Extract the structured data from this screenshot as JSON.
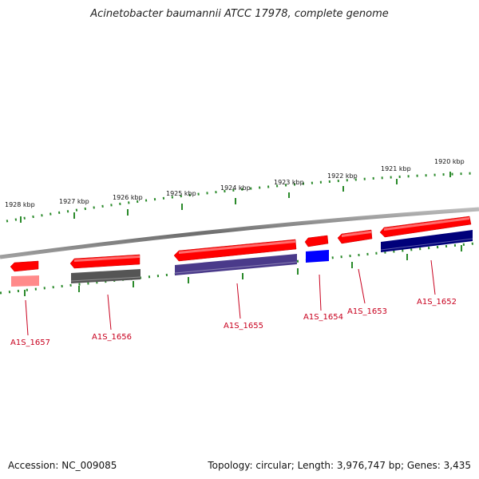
{
  "title": "Acinetobacter baumannii ATCC 17978, complete genome",
  "footer": {
    "accession": "Accession: NC_009085",
    "summary": "Topology: circular; Length: 3,976,747 bp; Genes: 3,435"
  },
  "scale": {
    "unit": "kbp",
    "ticks": [
      {
        "pos": 1920,
        "label": "1920 kbp"
      },
      {
        "pos": 1921,
        "label": "1921 kbp"
      },
      {
        "pos": 1922,
        "label": "1922 kbp"
      },
      {
        "pos": 1923,
        "label": "1923 kbp"
      },
      {
        "pos": 1924,
        "label": "1924 kbp"
      },
      {
        "pos": 1925,
        "label": "1925 kbp"
      },
      {
        "pos": 1926,
        "label": "1926 kbp"
      },
      {
        "pos": 1927,
        "label": "1927 kbp"
      },
      {
        "pos": 1928,
        "label": "1928 kbp"
      }
    ]
  },
  "genes": [
    {
      "id": "A1S_1652",
      "label": "A1S_1652"
    },
    {
      "id": "A1S_1653",
      "label": "A1S_1653"
    },
    {
      "id": "A1S_1654",
      "label": "A1S_1654"
    },
    {
      "id": "A1S_1655",
      "label": "A1S_1655"
    },
    {
      "id": "A1S_1656",
      "label": "A1S_1656"
    },
    {
      "id": "A1S_1657",
      "label": "A1S_1657"
    }
  ],
  "colors": {
    "gene_arrow": "#ff0000",
    "backbone": "#888888",
    "tick": "#2a8a2a",
    "label": "#c8001e",
    "cds_A1S_1652": "#00007a",
    "cds_A1S_1654": "#0000ff",
    "cds_A1S_1655": "#4a3a8a",
    "cds_A1S_1656": "#555555",
    "cds_A1S_1657": "#ff8a8a"
  }
}
